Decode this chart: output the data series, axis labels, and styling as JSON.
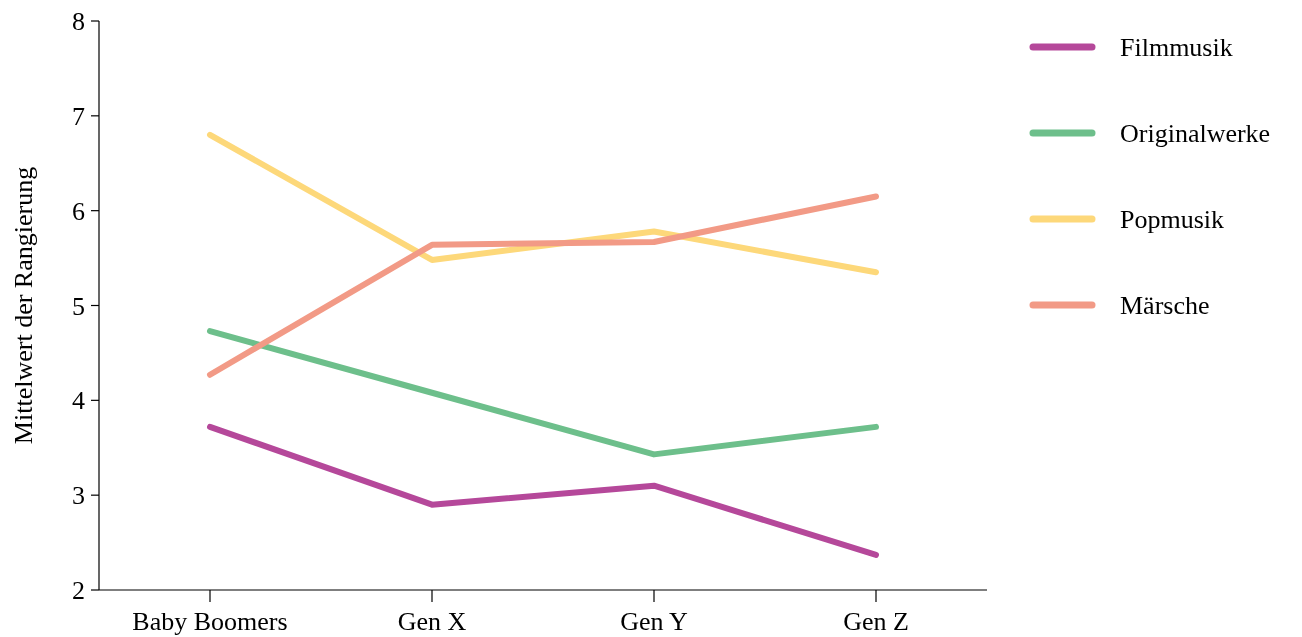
{
  "chart_data": {
    "type": "line",
    "ylabel": "Mittelwert der Rangierung",
    "categories": [
      "Baby Boomers",
      "Gen X",
      "Gen Y",
      "Gen Z"
    ],
    "ylim": [
      2,
      8
    ],
    "yticks": [
      2,
      3,
      4,
      5,
      6,
      7,
      8
    ],
    "grid": false,
    "legend": "top right",
    "marker": "none",
    "line_style": "solid",
    "series": [
      {
        "name": "Filmmusik",
        "color": "#b5489a",
        "values": [
          3.72,
          2.9,
          3.1,
          2.37
        ]
      },
      {
        "name": "Originalwerke",
        "color": "#6dbf8b",
        "values": [
          4.73,
          4.08,
          3.43,
          3.72
        ]
      },
      {
        "name": "Popmusik",
        "color": "#fdd87a",
        "values": [
          6.8,
          5.48,
          5.78,
          5.35
        ]
      },
      {
        "name": "Märsche",
        "color": "#f29a86",
        "values": [
          4.27,
          5.64,
          5.67,
          6.15
        ]
      }
    ]
  }
}
